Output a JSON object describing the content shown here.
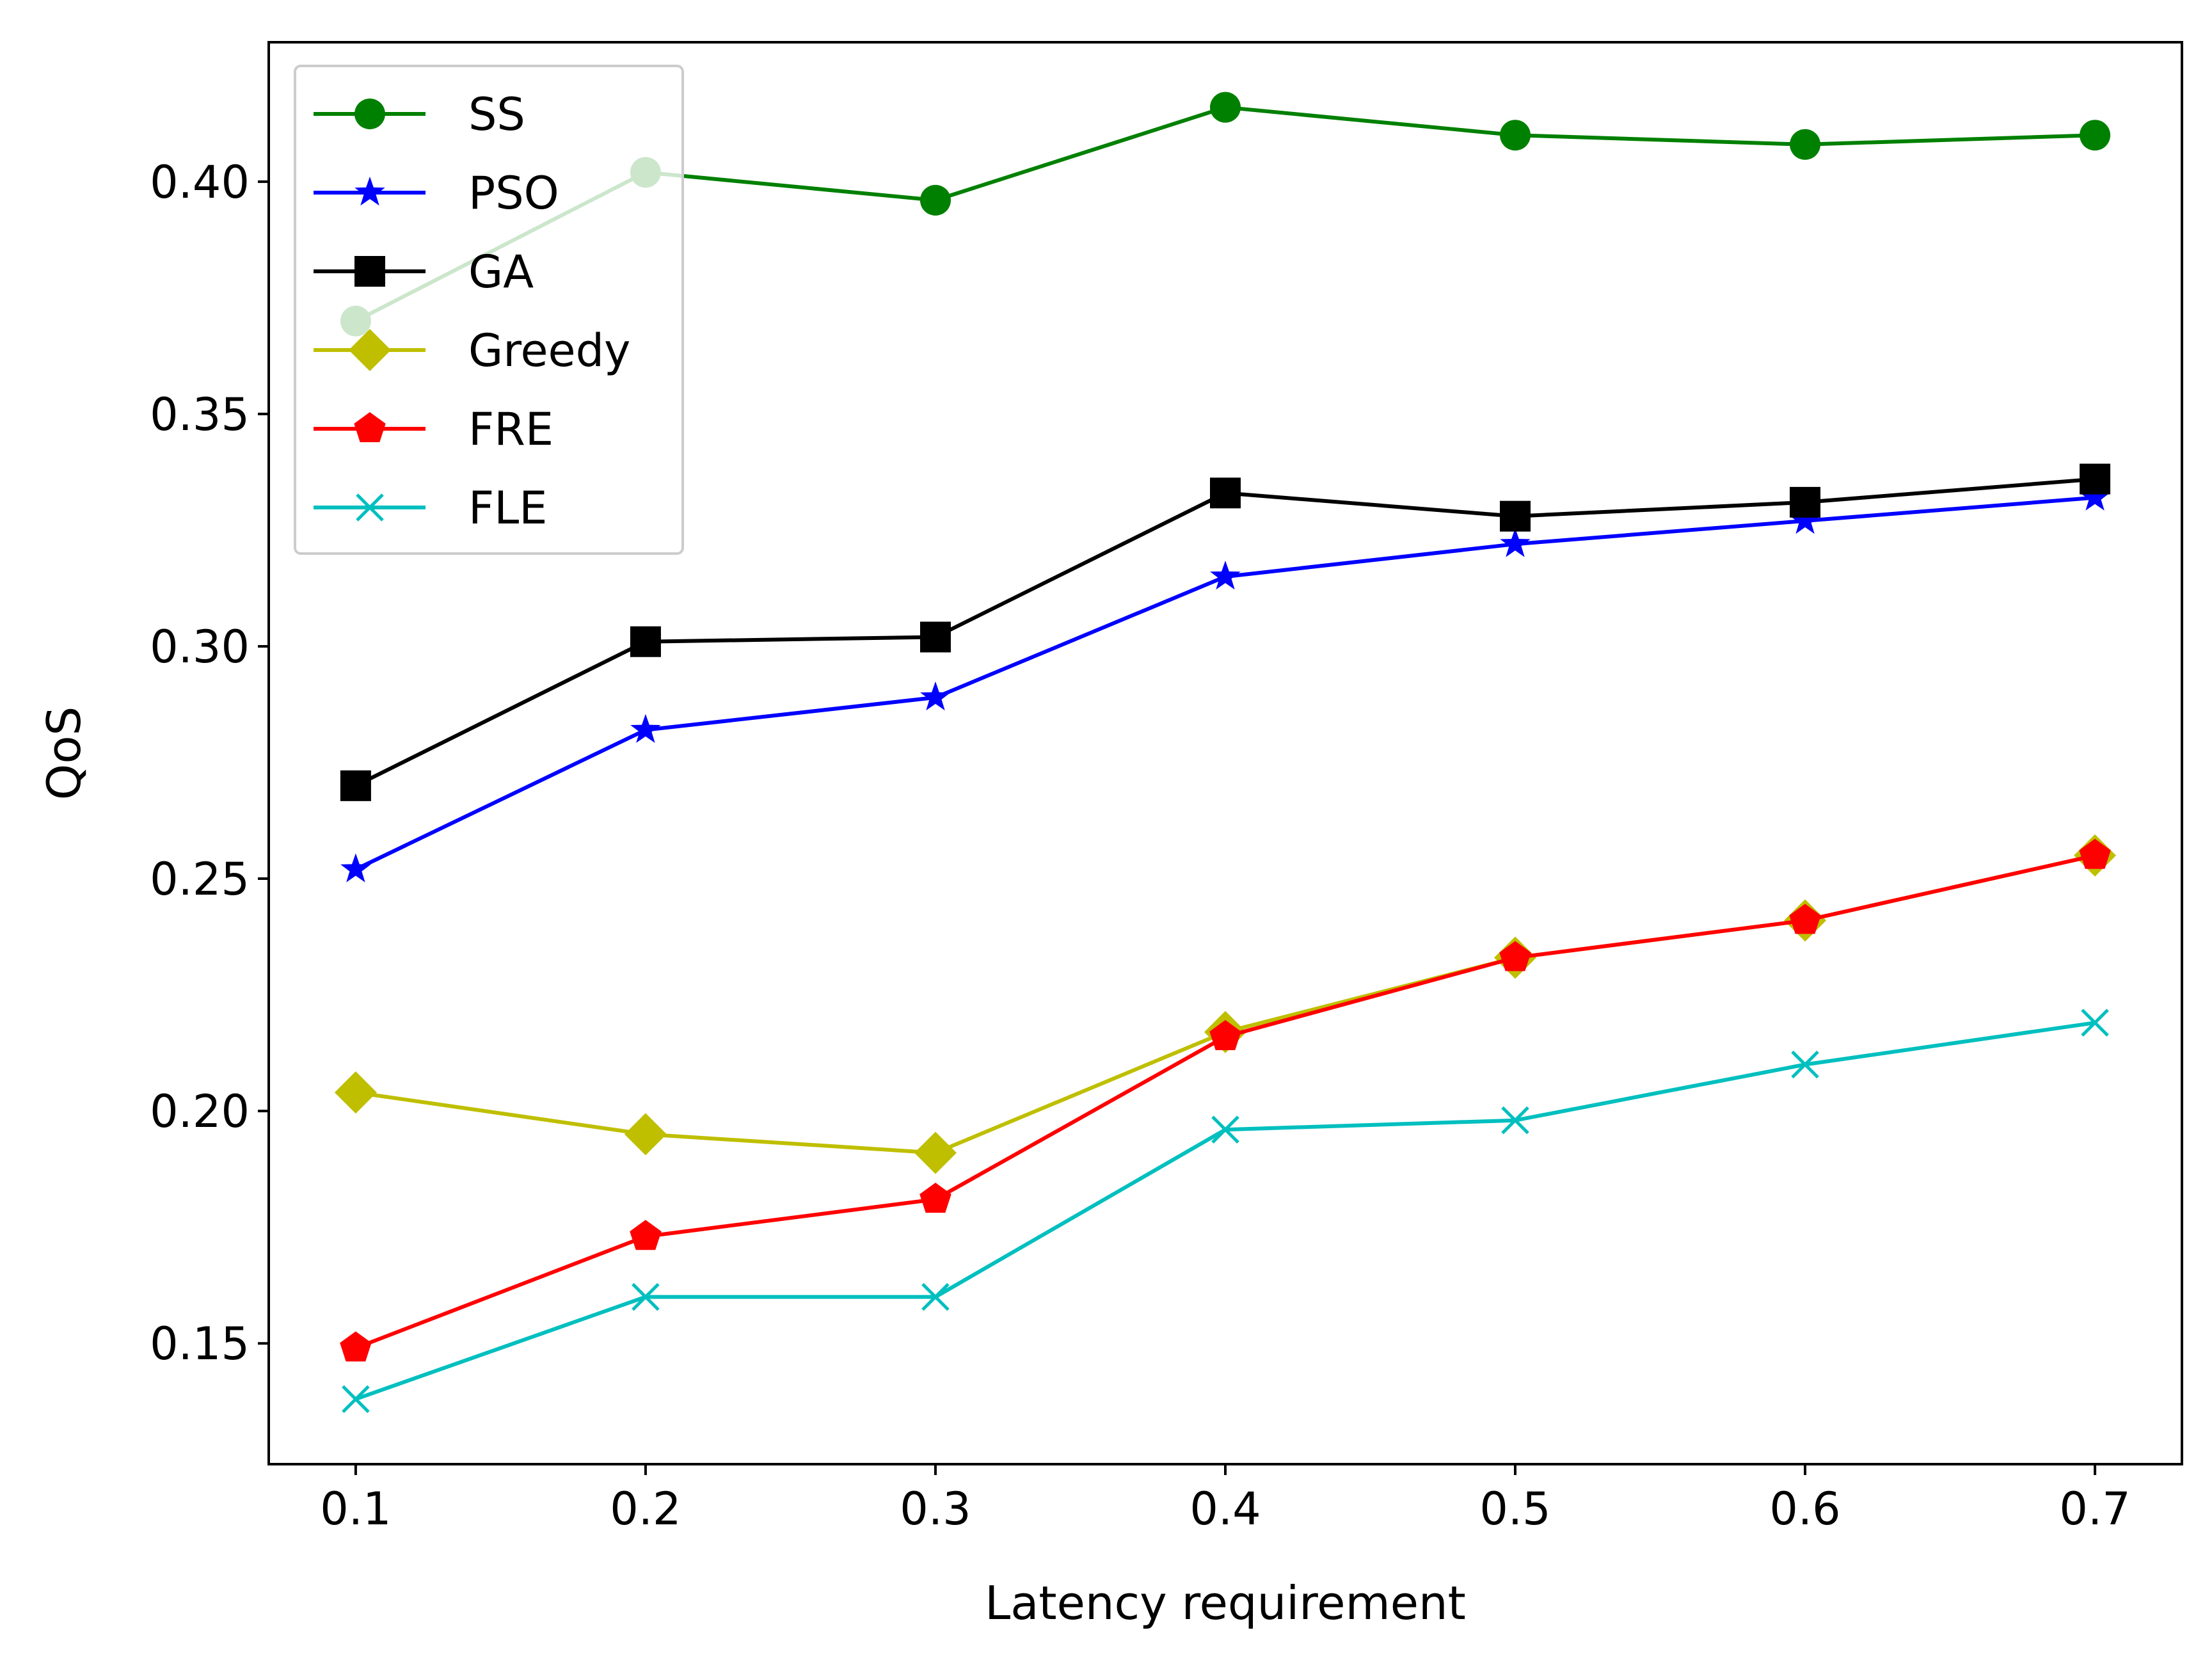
{
  "chart_data": {
    "type": "line",
    "title": "",
    "xlabel": "Latency requirement",
    "ylabel": "QoS",
    "x": [
      0.1,
      0.2,
      0.3,
      0.4,
      0.5,
      0.6,
      0.7
    ],
    "xlim": [
      0.07,
      0.73
    ],
    "ylim": [
      0.124,
      0.43
    ],
    "xticks": [
      "0.1",
      "0.2",
      "0.3",
      "0.4",
      "0.5",
      "0.6",
      "0.7"
    ],
    "yticks": [
      "0.15",
      "0.20",
      "0.25",
      "0.30",
      "0.35",
      "0.40"
    ],
    "grid": false,
    "legend_position": "top-left",
    "series": [
      {
        "name": "SS",
        "color": "#008000",
        "marker": "circle",
        "values": [
          0.37,
          0.402,
          0.396,
          0.416,
          0.41,
          0.408,
          0.41
        ]
      },
      {
        "name": "PSO",
        "color": "#0000ff",
        "marker": "star",
        "values": [
          0.252,
          0.282,
          0.289,
          0.315,
          0.322,
          0.327,
          0.332
        ]
      },
      {
        "name": "GA",
        "color": "#000000",
        "marker": "square",
        "values": [
          0.27,
          0.301,
          0.302,
          0.333,
          0.328,
          0.331,
          0.336
        ]
      },
      {
        "name": "Greedy",
        "color": "#bfbf00",
        "marker": "diamond",
        "values": [
          0.204,
          0.195,
          0.191,
          0.217,
          0.233,
          0.241,
          0.255
        ]
      },
      {
        "name": "FRE",
        "color": "#ff0000",
        "marker": "pentagon",
        "values": [
          0.149,
          0.173,
          0.181,
          0.216,
          0.233,
          0.241,
          0.255
        ]
      },
      {
        "name": "FLE",
        "color": "#00bfbf",
        "marker": "x",
        "values": [
          0.138,
          0.16,
          0.16,
          0.196,
          0.198,
          0.21,
          0.219
        ]
      }
    ]
  }
}
